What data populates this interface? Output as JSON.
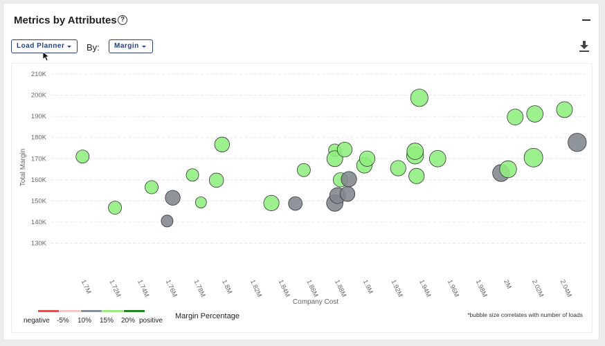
{
  "header": {
    "title": "Metrics by Attributes",
    "help_icon": "question-circle-icon",
    "collapse_icon": "minus-icon"
  },
  "controls": {
    "group_dropdown": "Load Planner",
    "by_label": "By:",
    "metric_dropdown": "Margin",
    "download_icon": "download-icon"
  },
  "legend": {
    "labels": [
      "negative",
      "-5%",
      "10%",
      "15%",
      "20%",
      "positive"
    ],
    "colors": [
      "#d9534f",
      "#f3c6cc",
      "#8a9096",
      "#98ec82",
      "#1f8a1f"
    ],
    "title": "Margin Percentage"
  },
  "footnote": "*bubble size correlates with number of loads",
  "colors": {
    "accent": "#27407a",
    "bubble_green": "#90ee7e",
    "bubble_gray": "#7f868d"
  },
  "chart_data": {
    "type": "scatter",
    "xlabel": "Company Cost",
    "ylabel": "Total Margin",
    "xlim": [
      1690000,
      2055000
    ],
    "ylim": [
      120000,
      212000
    ],
    "x_ticks": [
      1700000,
      1720000,
      1740000,
      1760000,
      1780000,
      1800000,
      1820000,
      1840000,
      1860000,
      1880000,
      1900000,
      1920000,
      1940000,
      1960000,
      1980000,
      2000000,
      2020000,
      2040000
    ],
    "x_tick_labels": [
      "1.7M",
      "1.72M",
      "1.74M",
      "1.76M",
      "1.78M",
      "1.8M",
      "1.82M",
      "1.84M",
      "1.86M",
      "1.88M",
      "1.9M",
      "1.92M",
      "1.94M",
      "1.96M",
      "1.98M",
      "2M",
      "2.02M",
      "2.04M"
    ],
    "y_ticks": [
      130000,
      140000,
      150000,
      160000,
      170000,
      180000,
      190000,
      200000,
      210000
    ],
    "y_tick_labels": [
      "130K",
      "140K",
      "150K",
      "160K",
      "170K",
      "180K",
      "190K",
      "200K",
      "210K"
    ],
    "grid": true,
    "size_note": "bubble size correlates with number of loads",
    "points": [
      {
        "x": 1698000,
        "y": 171000,
        "size": 1,
        "category": "15%"
      },
      {
        "x": 1721000,
        "y": 146800,
        "size": 1,
        "category": "15%"
      },
      {
        "x": 1747000,
        "y": 156500,
        "size": 1,
        "category": "15%"
      },
      {
        "x": 1758000,
        "y": 140500,
        "size": 0.8,
        "category": "10%"
      },
      {
        "x": 1762000,
        "y": 151500,
        "size": 1.3,
        "category": "10%"
      },
      {
        "x": 1776000,
        "y": 162300,
        "size": 0.9,
        "category": "15%"
      },
      {
        "x": 1782000,
        "y": 149300,
        "size": 0.7,
        "category": "15%"
      },
      {
        "x": 1793000,
        "y": 159800,
        "size": 1.2,
        "category": "15%"
      },
      {
        "x": 1797000,
        "y": 176700,
        "size": 1.3,
        "category": "15%"
      },
      {
        "x": 1832000,
        "y": 149000,
        "size": 1.4,
        "category": "15%"
      },
      {
        "x": 1849000,
        "y": 148800,
        "size": 1.1,
        "category": "10%"
      },
      {
        "x": 1855000,
        "y": 164600,
        "size": 1,
        "category": "15%"
      },
      {
        "x": 1877000,
        "y": 174000,
        "size": 0.9,
        "category": "15%"
      },
      {
        "x": 1877000,
        "y": 170000,
        "size": 1.5,
        "category": "15%"
      },
      {
        "x": 1877000,
        "y": 149000,
        "size": 1.6,
        "category": "10%"
      },
      {
        "x": 1879000,
        "y": 152500,
        "size": 1.5,
        "category": "10%"
      },
      {
        "x": 1881000,
        "y": 160000,
        "size": 1.2,
        "category": "15%"
      },
      {
        "x": 1884000,
        "y": 174300,
        "size": 1.3,
        "category": "15%"
      },
      {
        "x": 1886000,
        "y": 153300,
        "size": 1.3,
        "category": "10%"
      },
      {
        "x": 1887000,
        "y": 160300,
        "size": 1.4,
        "category": "10%"
      },
      {
        "x": 1898000,
        "y": 166800,
        "size": 1.4,
        "category": "15%"
      },
      {
        "x": 1900000,
        "y": 170000,
        "size": 1.4,
        "category": "15%"
      },
      {
        "x": 1922000,
        "y": 165500,
        "size": 1.4,
        "category": "15%"
      },
      {
        "x": 1934000,
        "y": 171500,
        "size": 1.7,
        "category": "15%"
      },
      {
        "x": 1934000,
        "y": 173500,
        "size": 1.6,
        "category": "15%"
      },
      {
        "x": 1935000,
        "y": 161800,
        "size": 1.4,
        "category": "15%"
      },
      {
        "x": 1937000,
        "y": 198800,
        "size": 1.8,
        "category": "15%"
      },
      {
        "x": 1950000,
        "y": 170000,
        "size": 1.6,
        "category": "15%"
      },
      {
        "x": 1995000,
        "y": 163200,
        "size": 1.7,
        "category": "10%"
      },
      {
        "x": 2000000,
        "y": 165000,
        "size": 1.7,
        "category": "15%"
      },
      {
        "x": 2005000,
        "y": 189700,
        "size": 1.5,
        "category": "15%"
      },
      {
        "x": 2018000,
        "y": 170500,
        "size": 2.1,
        "category": "15%"
      },
      {
        "x": 2019000,
        "y": 191200,
        "size": 1.6,
        "category": "15%"
      },
      {
        "x": 2040000,
        "y": 193200,
        "size": 1.5,
        "category": "15%"
      },
      {
        "x": 2049000,
        "y": 177700,
        "size": 2.0,
        "category": "10%"
      }
    ]
  }
}
